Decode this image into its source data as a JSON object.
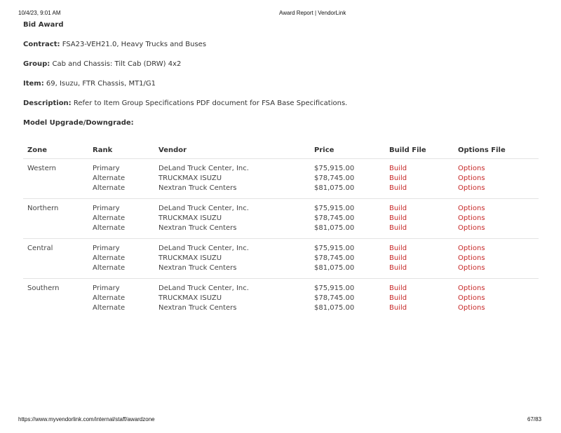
{
  "print_header": {
    "datetime": "10/4/23, 9:01 AM",
    "page_title": "Award Report | VendorLink"
  },
  "print_footer": {
    "url": "https://www.myvendorlink.com/internal/staff/awardzone",
    "page": "67/83"
  },
  "title": "Bid Award",
  "fields": [
    {
      "label": "Contract:",
      "value": "FSA23-VEH21.0, Heavy Trucks and Buses"
    },
    {
      "label": "Group:",
      "value": "Cab and Chassis: Tilt Cab (DRW) 4x2"
    },
    {
      "label": "Item:",
      "value": "69, Isuzu, FTR Chassis, MT1/G1"
    },
    {
      "label": "Description:",
      "value": "Refer to Item Group Specifications PDF document for FSA Base Specifications."
    },
    {
      "label": "Model Upgrade/Downgrade:",
      "value": ""
    }
  ],
  "link_color": "#c62828",
  "table": {
    "headers": [
      "Zone",
      "Rank",
      "Vendor",
      "Price",
      "Build File",
      "Options File"
    ],
    "groups": [
      {
        "zone": "Western",
        "rows": [
          {
            "rank": "Primary",
            "vendor": "DeLand Truck Center, Inc.",
            "price": "$75,915.00",
            "build": "Build",
            "options": "Options"
          },
          {
            "rank": "Alternate",
            "vendor": "TRUCKMAX ISUZU",
            "price": "$78,745.00",
            "build": "Build",
            "options": "Options"
          },
          {
            "rank": "Alternate",
            "vendor": "Nextran Truck Centers",
            "price": "$81,075.00",
            "build": "Build",
            "options": "Options"
          }
        ]
      },
      {
        "zone": "Northern",
        "rows": [
          {
            "rank": "Primary",
            "vendor": "DeLand Truck Center, Inc.",
            "price": "$75,915.00",
            "build": "Build",
            "options": "Options"
          },
          {
            "rank": "Alternate",
            "vendor": "TRUCKMAX ISUZU",
            "price": "$78,745.00",
            "build": "Build",
            "options": "Options"
          },
          {
            "rank": "Alternate",
            "vendor": "Nextran Truck Centers",
            "price": "$81,075.00",
            "build": "Build",
            "options": "Options"
          }
        ]
      },
      {
        "zone": "Central",
        "rows": [
          {
            "rank": "Primary",
            "vendor": "DeLand Truck Center, Inc.",
            "price": "$75,915.00",
            "build": "Build",
            "options": "Options"
          },
          {
            "rank": "Alternate",
            "vendor": "TRUCKMAX ISUZU",
            "price": "$78,745.00",
            "build": "Build",
            "options": "Options"
          },
          {
            "rank": "Alternate",
            "vendor": "Nextran Truck Centers",
            "price": "$81,075.00",
            "build": "Build",
            "options": "Options"
          }
        ]
      },
      {
        "zone": "Southern",
        "rows": [
          {
            "rank": "Primary",
            "vendor": "DeLand Truck Center, Inc.",
            "price": "$75,915.00",
            "build": "Build",
            "options": "Options"
          },
          {
            "rank": "Alternate",
            "vendor": "TRUCKMAX ISUZU",
            "price": "$78,745.00",
            "build": "Build",
            "options": "Options"
          },
          {
            "rank": "Alternate",
            "vendor": "Nextran Truck Centers",
            "price": "$81,075.00",
            "build": "Build",
            "options": "Options"
          }
        ]
      }
    ]
  }
}
